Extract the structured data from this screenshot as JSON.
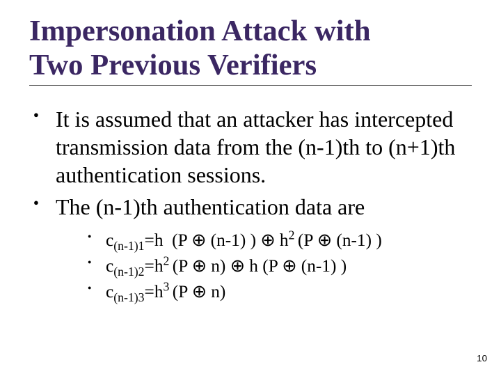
{
  "title": {
    "text": "Impersonation Attack with Two Previous Verifiers",
    "color": "#3b2763",
    "fontsize_pt": 32
  },
  "body_fontsize_pt": 24,
  "sub_fontsize_pt": 19,
  "bullets": [
    "It is assumed that an attacker has intercepted transmission data from the (n-1)th to (n+1)th authentication sessions.",
    "The (n-1)th authentication data are"
  ],
  "sub_bullets_html": [
    "c<sub>(n-1)1</sub>=h&nbsp; (P <span class=\"oplus\">⊕</span> (n-1) ) <span class=\"oplus\">⊕</span> h<sup>2 </sup>(P <span class=\"oplus\">⊕</span> (n-1) )",
    "c<sub>(n-1)2</sub>=h<sup>2 </sup>(P <span class=\"oplus\">⊕</span> n) <span class=\"oplus\">⊕</span> h (P <span class=\"oplus\">⊕</span> (n-1) )",
    "c<sub>(n-1)3</sub>=h<sup>3 </sup>(P <span class=\"oplus\">⊕</span> n)"
  ],
  "page_number": "10",
  "pageno_fontsize_pt": 10,
  "background_color": "#ffffff",
  "text_color": "#000000"
}
